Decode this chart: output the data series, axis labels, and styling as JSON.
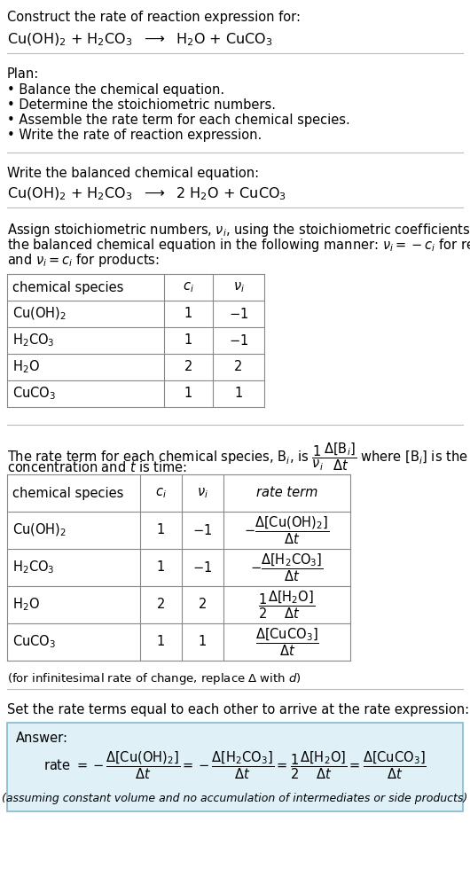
{
  "bg_color": "#ffffff",
  "text_color": "#000000",
  "answer_bg": "#dff0f7",
  "title_text": "Construct the rate of reaction expression for:",
  "reaction_unbalanced": "Cu(OH)$_2$ + H$_2$CO$_3$  $\\longrightarrow$  H$_2$O + CuCO$_3$",
  "plan_title": "Plan:",
  "plan_items": [
    "• Balance the chemical equation.",
    "• Determine the stoichiometric numbers.",
    "• Assemble the rate term for each chemical species.",
    "• Write the rate of reaction expression."
  ],
  "balanced_title": "Write the balanced chemical equation:",
  "reaction_balanced": "Cu(OH)$_2$ + H$_2$CO$_3$  $\\longrightarrow$  2 H$_2$O + CuCO$_3$",
  "stoich_intro_lines": [
    "Assign stoichiometric numbers, $\\nu_i$, using the stoichiometric coefficients, $c_i$, from",
    "the balanced chemical equation in the following manner: $\\nu_i = -c_i$ for reactants",
    "and $\\nu_i = c_i$ for products:"
  ],
  "table1_headers": [
    "chemical species",
    "$c_i$",
    "$\\nu_i$"
  ],
  "table1_rows": [
    [
      "Cu(OH)$_2$",
      "1",
      "$-1$"
    ],
    [
      "H$_2$CO$_3$",
      "1",
      "$-1$"
    ],
    [
      "H$_2$O",
      "2",
      "2"
    ],
    [
      "CuCO$_3$",
      "1",
      "1"
    ]
  ],
  "rate_intro_line1": "The rate term for each chemical species, B$_i$, is $\\dfrac{1}{\\nu_i}\\dfrac{\\Delta[\\mathrm{B}_i]}{\\Delta t}$ where [B$_i$] is the amount",
  "rate_intro_line2": "concentration and $t$ is time:",
  "table2_headers": [
    "chemical species",
    "$c_i$",
    "$\\nu_i$",
    "rate term"
  ],
  "table2_rows": [
    [
      "Cu(OH)$_2$",
      "1",
      "$-1$",
      "$-\\dfrac{\\Delta[\\mathrm{Cu(OH)_2}]}{\\Delta t}$"
    ],
    [
      "H$_2$CO$_3$",
      "1",
      "$-1$",
      "$-\\dfrac{\\Delta[\\mathrm{H_2CO_3}]}{\\Delta t}$"
    ],
    [
      "H$_2$O",
      "2",
      "2",
      "$\\dfrac{1}{2}\\dfrac{\\Delta[\\mathrm{H_2O}]}{\\Delta t}$"
    ],
    [
      "CuCO$_3$",
      "1",
      "1",
      "$\\dfrac{\\Delta[\\mathrm{CuCO_3}]}{\\Delta t}$"
    ]
  ],
  "infinitesimal_note": "(for infinitesimal rate of change, replace $\\Delta$ with $d$)",
  "set_equal_text": "Set the rate terms equal to each other to arrive at the rate expression:",
  "answer_label": "Answer:",
  "rate_expression": "rate $= -\\dfrac{\\Delta[\\mathrm{Cu(OH)_2}]}{\\Delta t} = -\\dfrac{\\Delta[\\mathrm{H_2CO_3}]}{\\Delta t} = \\dfrac{1}{2}\\dfrac{\\Delta[\\mathrm{H_2O}]}{\\Delta t} = \\dfrac{\\Delta[\\mathrm{CuCO_3}]}{\\Delta t}$",
  "assumption_note": "(assuming constant volume and no accumulation of intermediates or side products)"
}
